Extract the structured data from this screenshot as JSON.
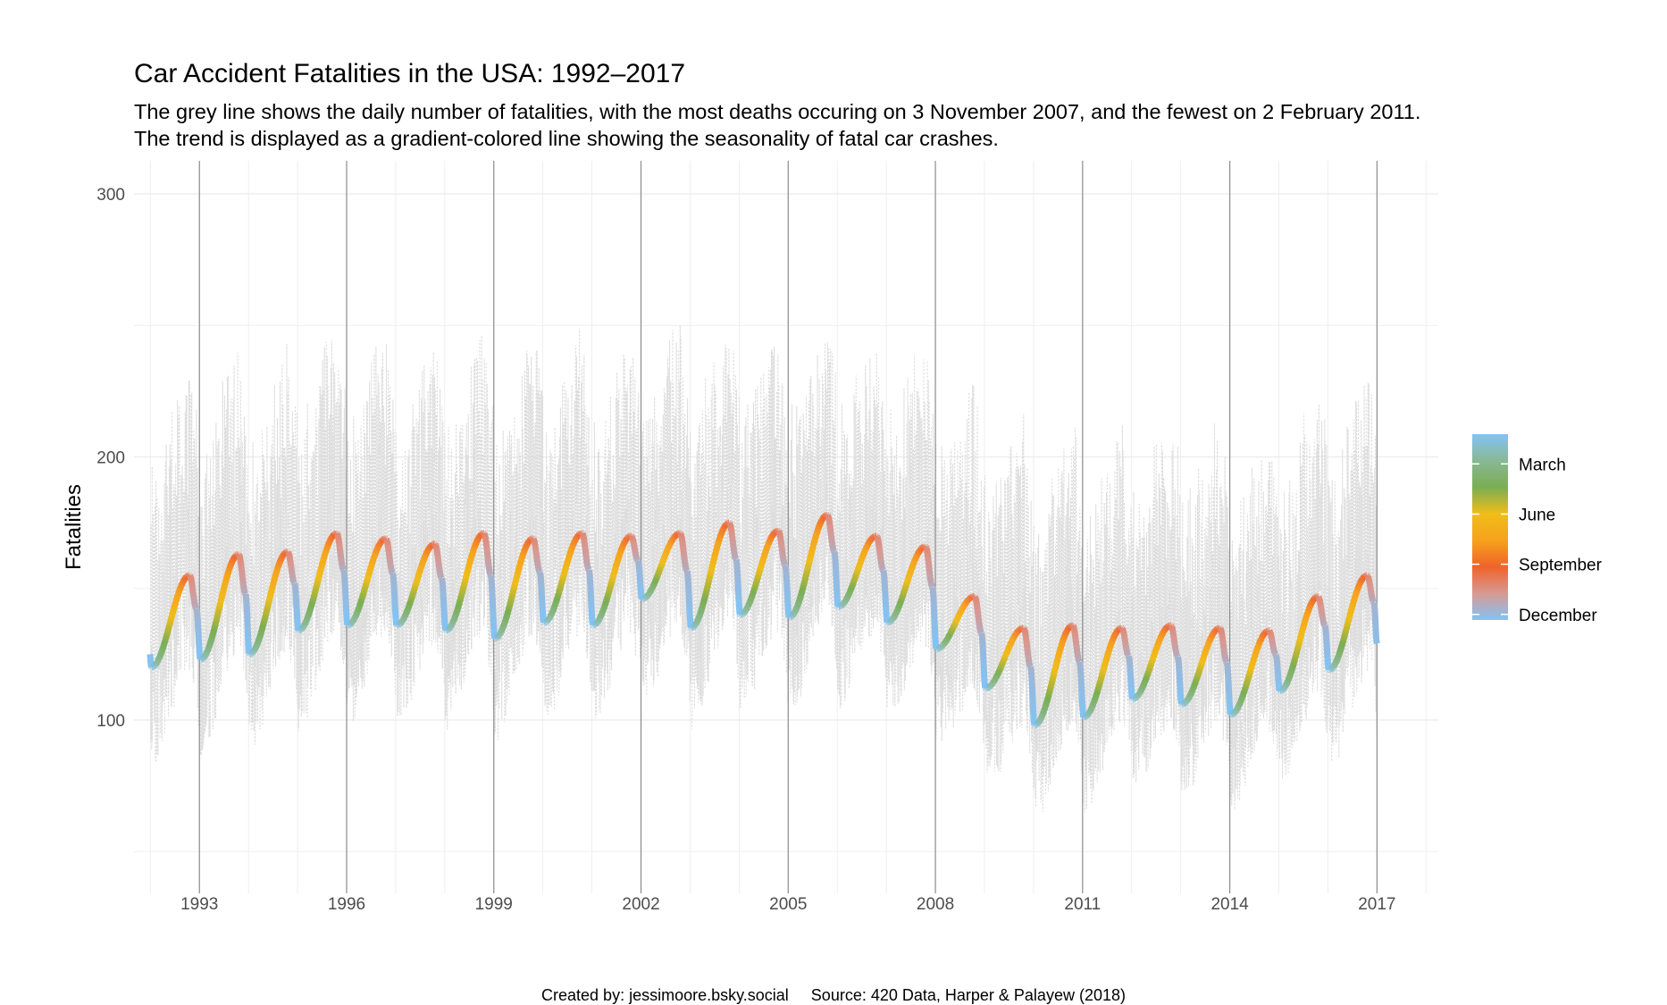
{
  "title": "Car Accident Fatalities in the USA: 1992–2017",
  "subtitle_line1": "The grey line shows the daily number of fatalities, with the most deaths occuring on 3 November 2007, and the fewest on 2 February 2011.",
  "subtitle_line2": "The trend is displayed as a gradient-colored line showing the seasonality of fatal car crashes.",
  "caption": "Created by: jessimoore.bsky.social     Source: 420 Data, Harper & Palayew (2018)",
  "colors": {
    "daily_line": "#d9d9d9",
    "year_marker": "#8c8c8c",
    "grid": "#ebebeb",
    "gradient": [
      "#82c3f5",
      "#88b895",
      "#7aae53",
      "#f0bd19",
      "#f6a21c",
      "#f0632a",
      "#d89993",
      "#82c3f5"
    ]
  },
  "chart_data": {
    "type": "line",
    "title": "Car Accident Fatalities in the USA: 1992–2017",
    "xlabel": "",
    "ylabel": "Fatalities",
    "xlim": [
      "1991-09-01",
      "2018-04-01"
    ],
    "ylim": [
      37,
      300
    ],
    "y_ticks": [
      100,
      200,
      300
    ],
    "x_ticks": [
      "1993",
      "1996",
      "1999",
      "2002",
      "2005",
      "2008",
      "2011",
      "2014",
      "2017"
    ],
    "year_markers": [
      "1993-01-01",
      "1996-01-01",
      "1999-01-01",
      "2002-01-01",
      "2005-01-01",
      "2008-01-01",
      "2011-01-01",
      "2014-01-01",
      "2017-01-01"
    ],
    "grid": true,
    "legend": {
      "position": "right",
      "type": "colorbar",
      "labels": [
        "March",
        "June",
        "September",
        "December"
      ]
    },
    "daily_series": {
      "name": "Daily fatalities",
      "style": "grey dotted",
      "max": {
        "date": "2007-11-03"
      },
      "min": {
        "date": "2011-02-02"
      }
    },
    "trend_series": {
      "name": "Trend",
      "style": "gradient colored by month",
      "annual_trough_peak": [
        {
          "year": 1992,
          "trough": 120,
          "peak": 155
        },
        {
          "year": 1993,
          "trough": 123,
          "peak": 163
        },
        {
          "year": 1994,
          "trough": 125,
          "peak": 164
        },
        {
          "year": 1995,
          "trough": 134,
          "peak": 171
        },
        {
          "year": 1996,
          "trough": 136,
          "peak": 169
        },
        {
          "year": 1997,
          "trough": 136,
          "peak": 167
        },
        {
          "year": 1998,
          "trough": 134,
          "peak": 171
        },
        {
          "year": 1999,
          "trough": 131,
          "peak": 169
        },
        {
          "year": 2000,
          "trough": 137,
          "peak": 171
        },
        {
          "year": 2001,
          "trough": 136,
          "peak": 170
        },
        {
          "year": 2002,
          "trough": 146,
          "peak": 171
        },
        {
          "year": 2003,
          "trough": 135,
          "peak": 175
        },
        {
          "year": 2004,
          "trough": 140,
          "peak": 172
        },
        {
          "year": 2005,
          "trough": 139,
          "peak": 178
        },
        {
          "year": 2006,
          "trough": 143,
          "peak": 170
        },
        {
          "year": 2007,
          "trough": 137,
          "peak": 166
        },
        {
          "year": 2008,
          "trough": 127,
          "peak": 147
        },
        {
          "year": 2009,
          "trough": 112,
          "peak": 135
        },
        {
          "year": 2010,
          "trough": 98,
          "peak": 136
        },
        {
          "year": 2011,
          "trough": 101,
          "peak": 135
        },
        {
          "year": 2012,
          "trough": 108,
          "peak": 136
        },
        {
          "year": 2013,
          "trough": 106,
          "peak": 135
        },
        {
          "year": 2014,
          "trough": 102,
          "peak": 134
        },
        {
          "year": 2015,
          "trough": 111,
          "peak": 147
        },
        {
          "year": 2016,
          "trough": 119,
          "peak": 155
        }
      ],
      "end": {
        "date": "2016-12-31",
        "value": 129
      }
    }
  }
}
